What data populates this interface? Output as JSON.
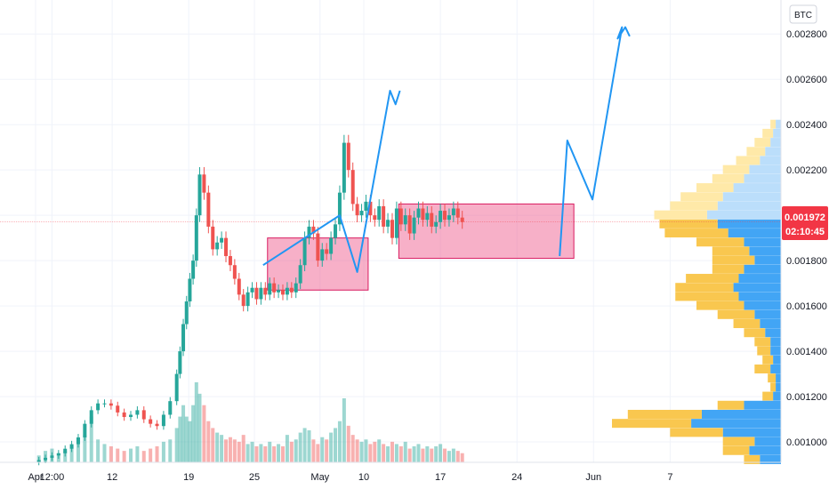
{
  "chart_data": {
    "type": "candlestick",
    "currency": "BTC",
    "ylim": [
      0.00091,
      0.00295
    ],
    "y_ticks": [
      "0.001000",
      "0.001200",
      "0.001400",
      "0.001600",
      "0.001800",
      "0.002000",
      "0.002200",
      "0.002400",
      "0.002600",
      "0.002800"
    ],
    "y_tick_values": [
      0.001,
      0.0012,
      0.0014,
      0.0016,
      0.0018,
      0.002,
      0.0022,
      0.0024,
      0.0026,
      0.0028
    ],
    "x_ticks": [
      "Apr",
      "12:00",
      "12",
      "19",
      "25",
      "May",
      "10",
      "17",
      "24",
      "Jun",
      "7"
    ],
    "x_tick_days": [
      0,
      1.5,
      7,
      14,
      20,
      26,
      30,
      37,
      44,
      51,
      58
    ],
    "current_price": "0.001972",
    "current_price_value": 0.001972,
    "countdown": "02:10:45",
    "x_days": [
      0.3,
      0.9,
      1.5,
      2.1,
      2.7,
      3.3,
      3.9,
      4.5,
      5.1,
      5.7,
      6.3,
      6.9,
      7.5,
      8.1,
      8.7,
      9.3,
      9.9,
      10.5,
      11.1,
      11.7,
      12.3,
      12.9,
      13.2,
      13.5,
      13.8,
      14.1,
      14.4,
      14.7,
      15.0,
      15.4,
      15.8,
      16.2,
      16.6,
      17.0,
      17.4,
      17.8,
      18.2,
      18.6,
      19.0,
      19.4,
      19.8,
      20.2,
      20.6,
      21.0,
      21.4,
      21.8,
      22.2,
      22.6,
      23.0,
      23.4,
      23.8,
      24.2,
      24.6,
      25.0,
      25.4,
      25.8,
      26.2,
      26.6,
      27.0,
      27.4,
      27.8,
      28.2,
      28.6,
      29.0,
      29.4,
      29.8,
      30.2,
      30.6,
      31.0,
      31.4,
      31.8,
      32.2,
      32.6,
      33.0,
      33.4,
      33.8,
      34.2,
      34.6,
      35.0,
      35.4,
      35.8,
      36.2,
      36.6,
      37.0,
      37.4,
      37.8,
      38.2,
      38.6,
      39.0
    ],
    "close": [
      0.00092,
      0.00093,
      0.00094,
      0.00095,
      0.00097,
      0.00099,
      0.00102,
      0.00108,
      0.00114,
      0.00117,
      0.00117,
      0.00116,
      0.00113,
      0.00111,
      0.00112,
      0.00114,
      0.0011,
      0.00108,
      0.00107,
      0.00112,
      0.00118,
      0.0013,
      0.0014,
      0.00152,
      0.00162,
      0.00172,
      0.0018,
      0.002,
      0.00218,
      0.0021,
      0.00195,
      0.00185,
      0.00188,
      0.0019,
      0.00182,
      0.00178,
      0.00172,
      0.00165,
      0.0016,
      0.00166,
      0.00168,
      0.00163,
      0.00168,
      0.00165,
      0.0017,
      0.00166,
      0.00167,
      0.00165,
      0.00168,
      0.00166,
      0.0017,
      0.00178,
      0.0019,
      0.00195,
      0.00192,
      0.0018,
      0.00185,
      0.00183,
      0.0019,
      0.00196,
      0.0021,
      0.00232,
      0.0022,
      0.00205,
      0.002,
      0.00202,
      0.00206,
      0.002,
      0.00198,
      0.00204,
      0.00195,
      0.00198,
      0.0019,
      0.00203,
      0.00196,
      0.002,
      0.00192,
      0.00199,
      0.00203,
      0.00198,
      0.00201,
      0.00195,
      0.00197,
      0.00202,
      0.00198,
      0.002,
      0.00203,
      0.00199,
      0.00197
    ],
    "volume": [
      0.3,
      0.5,
      0.6,
      0.4,
      0.5,
      0.7,
      0.8,
      1.2,
      2.0,
      1.0,
      0.8,
      0.7,
      0.6,
      0.5,
      0.6,
      0.7,
      0.5,
      0.6,
      0.7,
      0.9,
      1.0,
      1.5,
      2.0,
      2.5,
      2.0,
      1.8,
      2.5,
      3.5,
      3.0,
      2.5,
      1.8,
      1.5,
      1.3,
      1.2,
      1.0,
      1.1,
      1.0,
      0.9,
      1.2,
      0.8,
      0.9,
      0.7,
      0.8,
      0.7,
      0.9,
      0.7,
      0.8,
      0.7,
      1.2,
      0.9,
      1.0,
      1.3,
      1.5,
      1.4,
      1.0,
      0.8,
      1.1,
      1.0,
      1.3,
      1.5,
      1.8,
      2.8,
      1.6,
      1.2,
      1.0,
      0.9,
      1.0,
      0.8,
      0.9,
      1.0,
      0.8,
      0.7,
      0.9,
      0.8,
      0.7,
      0.9,
      0.6,
      0.7,
      0.8,
      0.6,
      0.7,
      0.6,
      0.7,
      0.8,
      0.6,
      0.5,
      0.6,
      0.5,
      0.4
    ],
    "zones": [
      {
        "x": [
          21.2,
          30.4
        ],
        "y": [
          0.00167,
          0.0019
        ]
      },
      {
        "x": [
          33.2,
          49.2
        ],
        "y": [
          0.00181,
          0.00205
        ]
      }
    ],
    "projection_path": [
      {
        "x": 20.8,
        "y": 0.00178
      },
      {
        "x": 27.8,
        "y": 0.002
      },
      {
        "x": 29.4,
        "y": 0.00175
      },
      {
        "x": 32.4,
        "y": 0.00255
      },
      {
        "x": 32.9,
        "y": 0.00249
      },
      {
        "x": 33.3,
        "y": 0.00255
      }
    ],
    "projection_path_2": [
      {
        "x": 47.9,
        "y": 0.00182
      },
      {
        "x": 48.6,
        "y": 0.00233
      },
      {
        "x": 50.9,
        "y": 0.00207
      },
      {
        "x": 53.6,
        "y": 0.00283
      },
      {
        "x": 53.2,
        "y": 0.00278
      },
      {
        "x": 53.9,
        "y": 0.00283
      },
      {
        "x": 54.3,
        "y": 0.00279
      }
    ],
    "volume_profile": {
      "prices": [
        0.0024,
        0.00236,
        0.00232,
        0.00228,
        0.00224,
        0.0022,
        0.00216,
        0.00212,
        0.00208,
        0.00204,
        0.002,
        0.00196,
        0.00192,
        0.00188,
        0.00184,
        0.0018,
        0.00176,
        0.00172,
        0.00168,
        0.00164,
        0.0016,
        0.00156,
        0.00152,
        0.00148,
        0.00144,
        0.0014,
        0.00136,
        0.00132,
        0.00128,
        0.00124,
        0.0012,
        0.00116,
        0.00112,
        0.00108,
        0.00104,
        0.001,
        0.00096,
        0.00092
      ],
      "up": [
        2,
        4,
        6,
        7,
        9,
        10,
        12,
        14,
        16,
        18,
        20,
        22,
        24,
        18,
        14,
        16,
        12,
        20,
        22,
        24,
        18,
        14,
        10,
        8,
        6,
        5,
        4,
        6,
        3,
        2,
        4,
        10,
        28,
        30,
        20,
        12,
        10,
        6
      ],
      "down": [
        2,
        3,
        4,
        6,
        8,
        12,
        14,
        18,
        22,
        24,
        28,
        24,
        20,
        14,
        12,
        10,
        14,
        16,
        18,
        16,
        14,
        10,
        8,
        6,
        4,
        4,
        3,
        4,
        2,
        2,
        3,
        14,
        30,
        34,
        22,
        10,
        12,
        8
      ],
      "max": 64
    }
  }
}
